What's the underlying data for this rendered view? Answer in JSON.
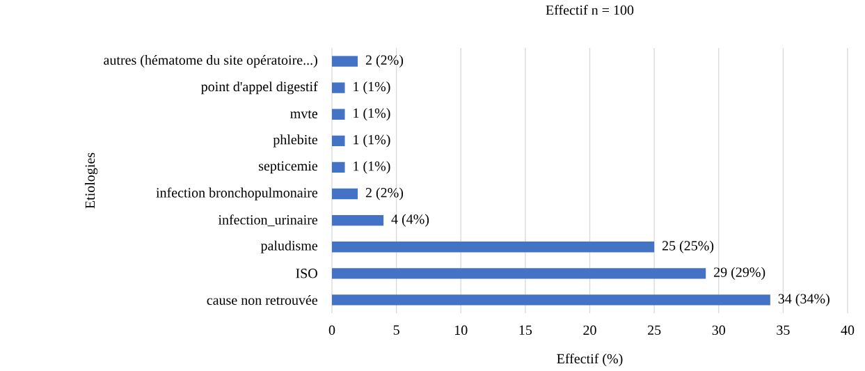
{
  "chart_data": {
    "type": "bar",
    "orientation": "horizontal",
    "title": "Effectif n = 100",
    "xlabel": "Effectif (%)",
    "ylabel": "Etiologies",
    "categories": [
      "autres (hématome du site opératoire...)",
      "point d'appel digestif",
      "mvte",
      "phlebite",
      "septicemie",
      "infection bronchopulmonaire",
      "infection_urinaire",
      "paludisme",
      "ISO",
      "cause non retrouvée"
    ],
    "values": [
      2,
      1,
      1,
      1,
      1,
      2,
      4,
      25,
      29,
      34
    ],
    "value_labels": [
      "2 (2%)",
      "1 (1%)",
      "1 (1%)",
      "1 (1%)",
      "1 (1%)",
      "2 (2%)",
      "4 (4%)",
      "25 (25%)",
      "29 (29%)",
      "34 (34%)"
    ],
    "color": "#4472c4",
    "xlim": [
      0,
      40
    ],
    "xticks": [
      0,
      5,
      10,
      15,
      20,
      25,
      30,
      35,
      40
    ],
    "grid": "x"
  }
}
